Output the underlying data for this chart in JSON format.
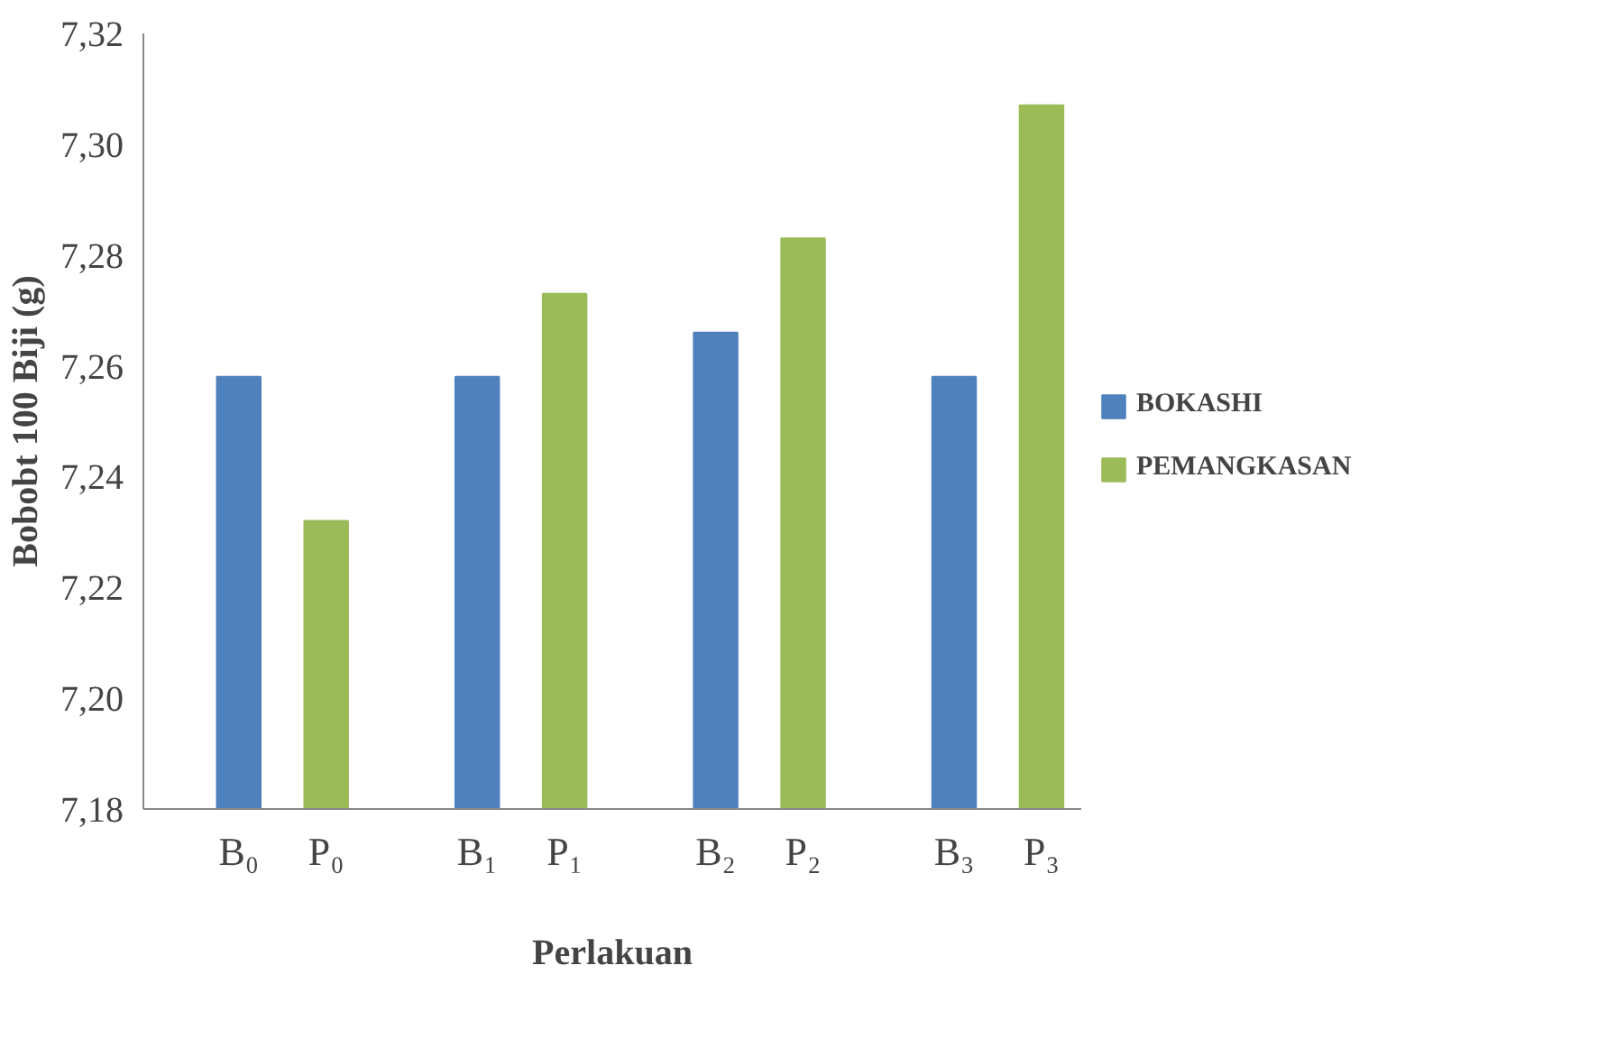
{
  "chart_data": {
    "type": "bar",
    "xlabel": "Perlakuan",
    "ylabel": "Bobobt 100 Biji (g)",
    "categories": [
      "B₀",
      "P₀",
      "B₁",
      "P₁",
      "B₂",
      "P₂",
      "B₃",
      "P₃"
    ],
    "series": [
      {
        "name": "BOKASHI",
        "color": "#4f81bd",
        "values": [
          7.258,
          null,
          7.258,
          null,
          7.266,
          null,
          7.258,
          null
        ]
      },
      {
        "name": "PEMANGKASAN",
        "color": "#9bbb59",
        "values": [
          null,
          7.232,
          null,
          7.273,
          null,
          7.283,
          null,
          7.307
        ]
      }
    ],
    "ylim": [
      7.18,
      7.32
    ],
    "yticks": [
      {
        "value": 7.18,
        "label": "7,18"
      },
      {
        "value": 7.2,
        "label": "7,20"
      },
      {
        "value": 7.22,
        "label": "7,22"
      },
      {
        "value": 7.24,
        "label": "7,24"
      },
      {
        "value": 7.26,
        "label": "7,26"
      },
      {
        "value": 7.28,
        "label": "7,28"
      },
      {
        "value": 7.3,
        "label": "7,30"
      },
      {
        "value": 7.32,
        "label": "7,32"
      }
    ],
    "grid": false,
    "legend": "right"
  }
}
